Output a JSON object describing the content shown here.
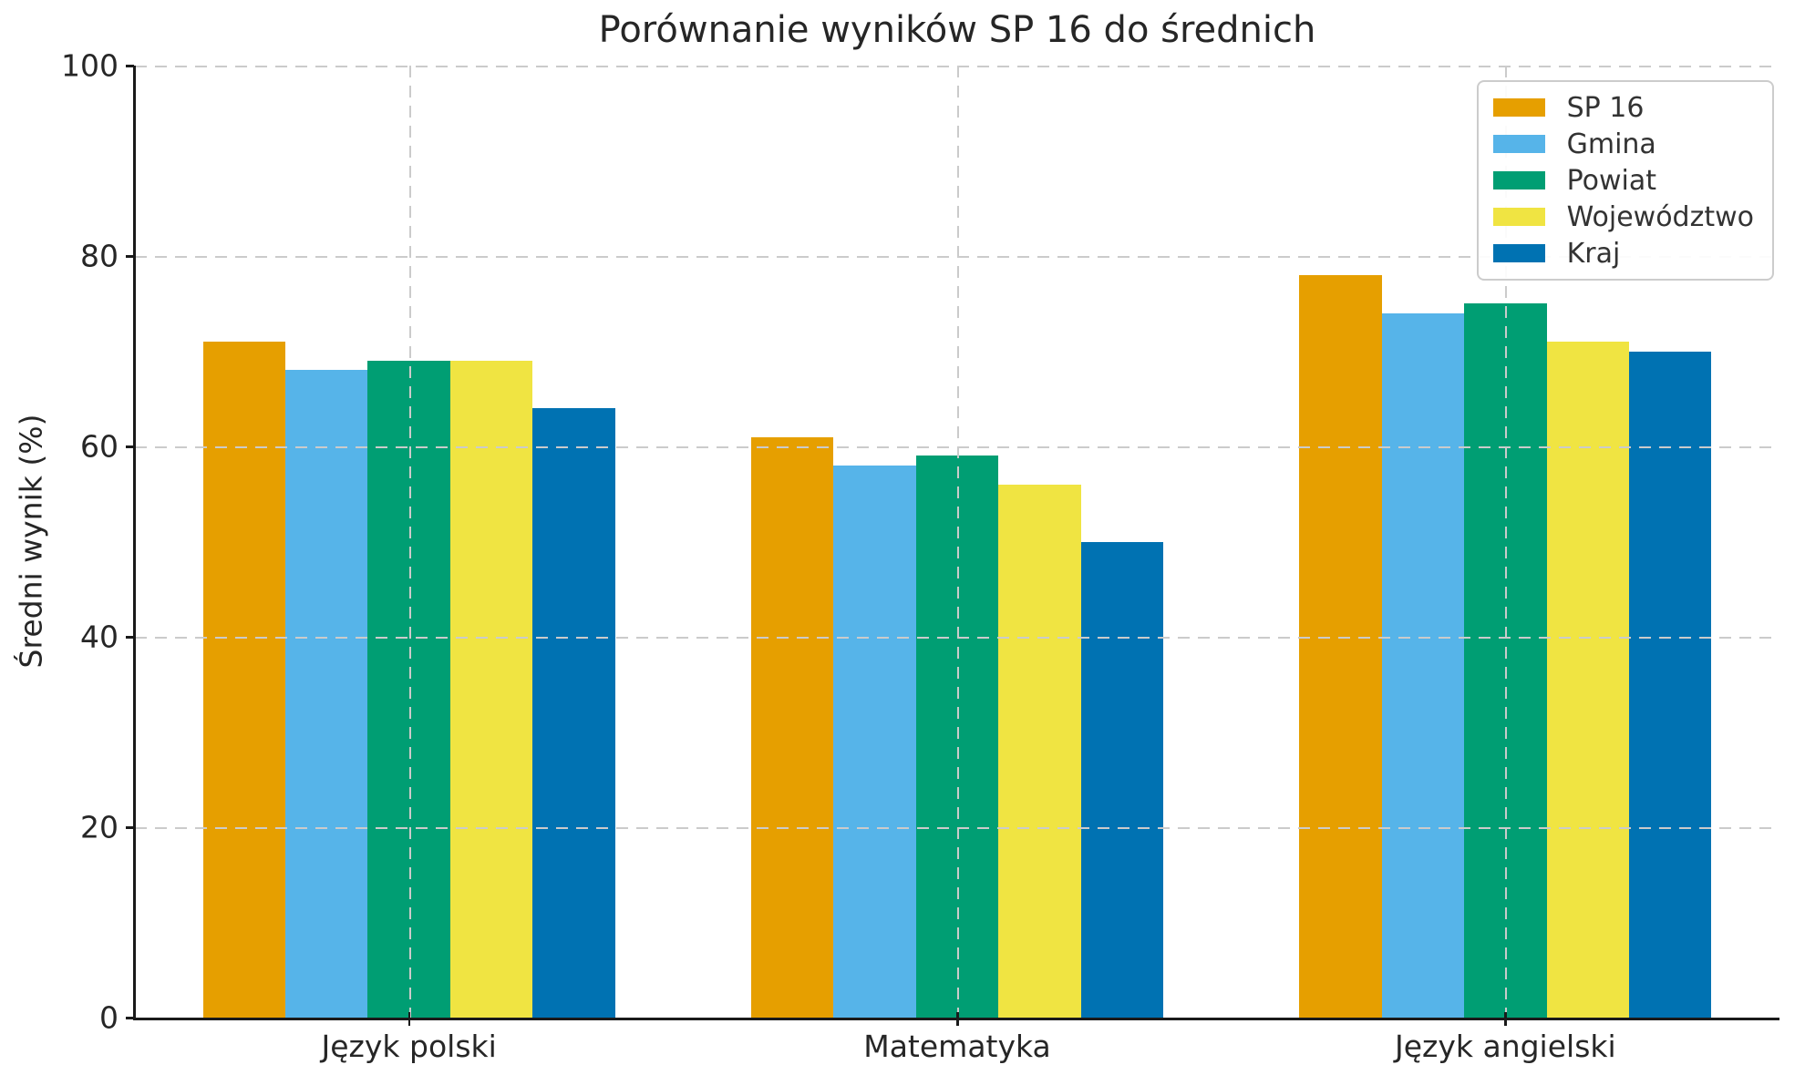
{
  "chart_data": {
    "type": "bar",
    "title": "Porównanie wyników SP 16 do średnich",
    "ylabel": "Średni wynik (%)",
    "xlabel": "",
    "ylim": [
      0,
      100
    ],
    "yticks": [
      0,
      20,
      40,
      60,
      80,
      100
    ],
    "categories": [
      "Język polski",
      "Matematyka",
      "Język angielski"
    ],
    "series": [
      {
        "name": "SP 16",
        "color": "#E69F00",
        "values": [
          71,
          61,
          78
        ]
      },
      {
        "name": "Gmina",
        "color": "#56B4E9",
        "values": [
          68,
          58,
          74
        ]
      },
      {
        "name": "Powiat",
        "color": "#009E73",
        "values": [
          69,
          59,
          75
        ]
      },
      {
        "name": "Województwo",
        "color": "#F0E442",
        "values": [
          69,
          56,
          71
        ]
      },
      {
        "name": "Kraj",
        "color": "#0072B2",
        "values": [
          64,
          50,
          70
        ]
      }
    ],
    "grid": {
      "horizontal": true,
      "vertical": true,
      "style": "dashed",
      "color": "#cbcbcb",
      "drawn_above_bars": true
    },
    "legend": {
      "position": "upper right"
    },
    "text_color": "#262626",
    "background_color": "#ffffff"
  }
}
